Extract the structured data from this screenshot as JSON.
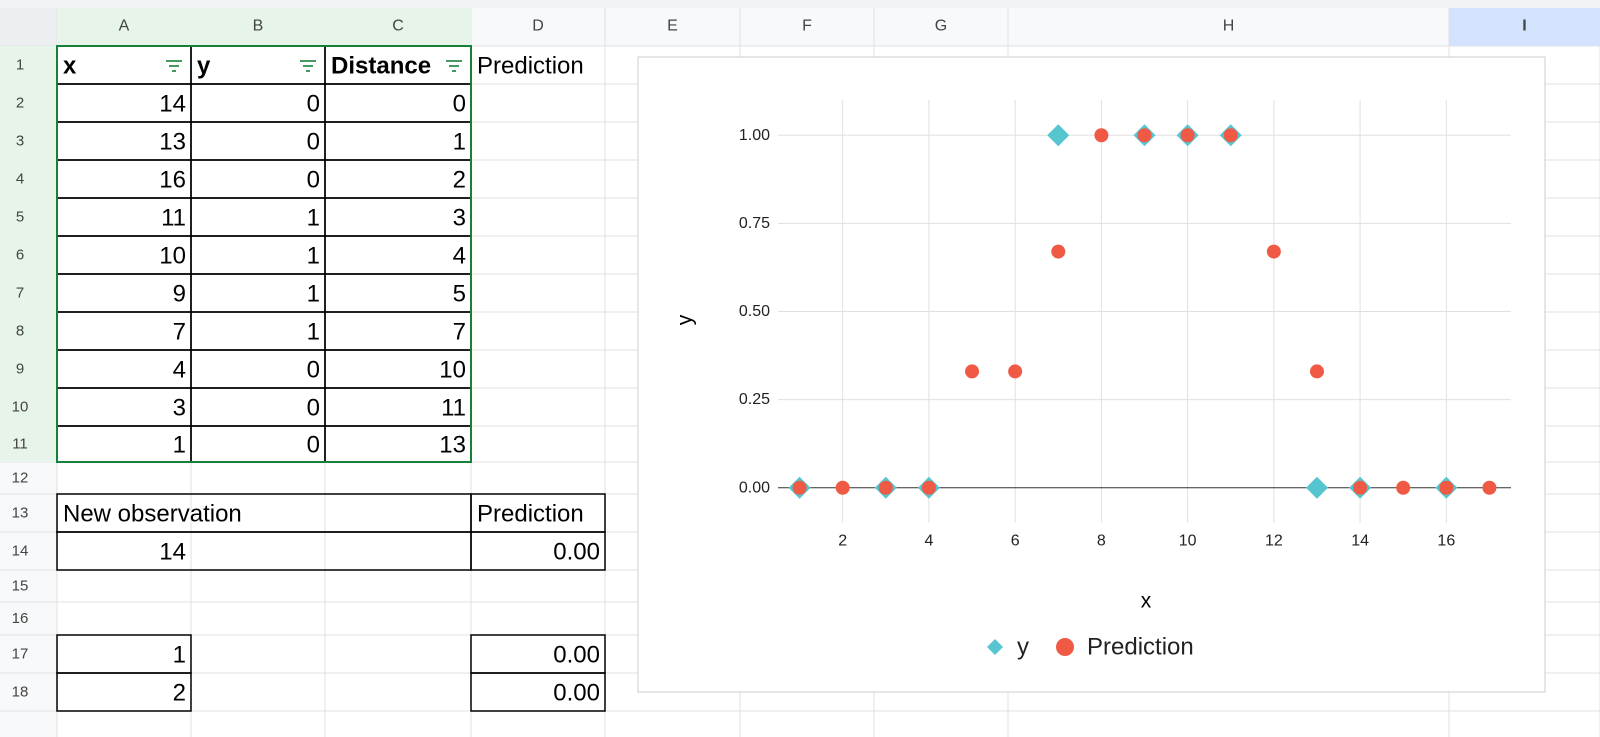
{
  "column_headers": [
    "A",
    "B",
    "C",
    "D",
    "E",
    "F",
    "G",
    "H",
    "I"
  ],
  "row_numbers": [
    1,
    2,
    3,
    4,
    5,
    6,
    7,
    8,
    9,
    10,
    11,
    12,
    13,
    14,
    15,
    16,
    17,
    18
  ],
  "table": {
    "header": [
      "x",
      "y",
      "Distance",
      "Prediction"
    ],
    "rows": [
      [
        14,
        0,
        0
      ],
      [
        13,
        0,
        1
      ],
      [
        16,
        0,
        2
      ],
      [
        11,
        1,
        3
      ],
      [
        10,
        1,
        4
      ],
      [
        9,
        1,
        5
      ],
      [
        7,
        1,
        7
      ],
      [
        4,
        0,
        10
      ],
      [
        3,
        0,
        11
      ],
      [
        1,
        0,
        13
      ]
    ]
  },
  "new_observation": {
    "header": [
      "New observation",
      "Prediction"
    ],
    "row": [
      14,
      "0.00"
    ]
  },
  "extra_rows": [
    [
      1,
      "0.00"
    ],
    [
      2,
      "0.00"
    ]
  ],
  "chart_data": {
    "type": "scatter",
    "x_label": "x",
    "y_label": "y",
    "series": [
      {
        "name": "y",
        "color": "#56c5d0",
        "marker": "diamond",
        "x": [
          14,
          13,
          16,
          11,
          10,
          9,
          7,
          4,
          3,
          1
        ],
        "values": [
          0,
          0,
          0,
          1,
          1,
          1,
          1,
          0,
          0,
          0
        ]
      },
      {
        "name": "Prediction",
        "color": "#f05a45",
        "marker": "circle",
        "x": [
          1,
          2,
          3,
          4,
          5,
          6,
          7,
          8,
          9,
          10,
          11,
          12,
          13,
          14,
          15,
          16,
          17
        ],
        "values": [
          0,
          0,
          0,
          0,
          0.33,
          0.33,
          0.67,
          1,
          1,
          1,
          1,
          0.67,
          0.33,
          0,
          0,
          0,
          0
        ]
      }
    ],
    "xlim": [
      0.5,
      17.5
    ],
    "xticks": [
      2,
      4,
      6,
      8,
      10,
      12,
      14,
      16
    ],
    "ylim": [
      -0.1,
      1.1
    ],
    "yticks": [
      {
        "value": 0,
        "label": "0.00"
      },
      {
        "value": 0.25,
        "label": "0.25"
      },
      {
        "value": 0.5,
        "label": "0.50"
      },
      {
        "value": 0.75,
        "label": "0.75"
      },
      {
        "value": 1,
        "label": "1.00"
      }
    ],
    "grid": true,
    "legend": "bottom"
  }
}
